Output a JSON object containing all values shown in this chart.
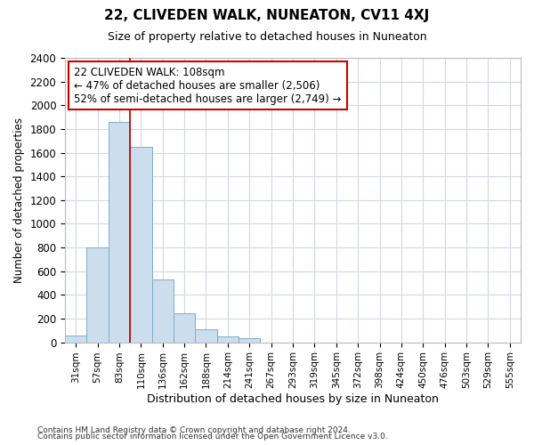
{
  "title": "22, CLIVEDEN WALK, NUNEATON, CV11 4XJ",
  "subtitle": "Size of property relative to detached houses in Nuneaton",
  "xlabel": "Distribution of detached houses by size in Nuneaton",
  "ylabel": "Number of detached properties",
  "bar_color": "#ccdded",
  "bar_edge_color": "#7aafc8",
  "vline_color": "#cc0000",
  "annotation_text": "22 CLIVEDEN WALK: 108sqm\n← 47% of detached houses are smaller (2,506)\n52% of semi-detached houses are larger (2,749) →",
  "annotation_box_color": "#ffffff",
  "annotation_box_edge": "#cc0000",
  "categories": [
    "31sqm",
    "57sqm",
    "83sqm",
    "110sqm",
    "136sqm",
    "162sqm",
    "188sqm",
    "214sqm",
    "241sqm",
    "267sqm",
    "293sqm",
    "319sqm",
    "345sqm",
    "372sqm",
    "398sqm",
    "424sqm",
    "450sqm",
    "476sqm",
    "503sqm",
    "529sqm",
    "555sqm"
  ],
  "values": [
    55,
    800,
    1860,
    1650,
    530,
    245,
    110,
    50,
    35,
    0,
    0,
    0,
    0,
    0,
    0,
    0,
    0,
    0,
    0,
    0,
    0
  ],
  "ylim": [
    0,
    2400
  ],
  "yticks": [
    0,
    200,
    400,
    600,
    800,
    1000,
    1200,
    1400,
    1600,
    1800,
    2000,
    2200,
    2400
  ],
  "background_color": "#ffffff",
  "grid_color": "#d0d8e8",
  "fig_bg": "#ffffff",
  "footer1": "Contains HM Land Registry data © Crown copyright and database right 2024.",
  "footer2": "Contains public sector information licensed under the Open Government Licence v3.0."
}
